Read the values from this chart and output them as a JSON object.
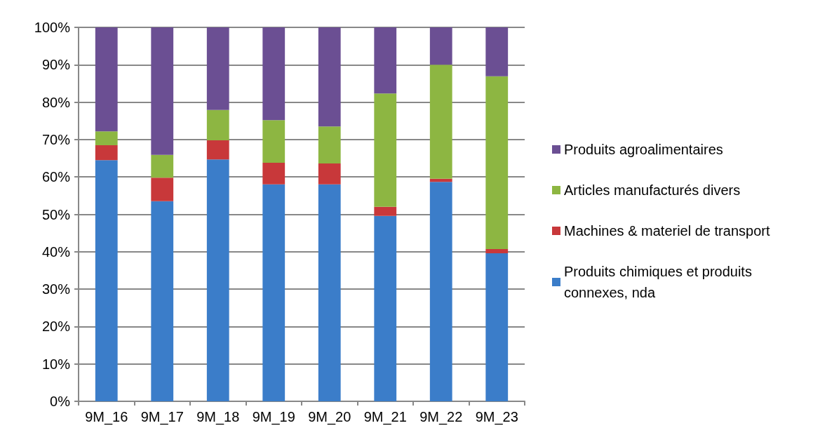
{
  "chart_data": {
    "type": "bar",
    "stacked": true,
    "grid": "y",
    "legend": "right",
    "categories": [
      "9M_16",
      "9M_17",
      "9M_18",
      "9M_19",
      "9M_20",
      "9M_21",
      "9M_22",
      "9M_23"
    ],
    "series": [
      {
        "name": "Produits chimiques et produits connexes, nda",
        "color": "#3b7dc9",
        "values": [
          64.5,
          53.5,
          64.7,
          58.0,
          58.0,
          49.6,
          58.7,
          39.6
        ]
      },
      {
        "name": "Machines & materiel de transport",
        "color": "#c8383a",
        "values": [
          4.0,
          6.3,
          5.1,
          5.8,
          5.6,
          2.4,
          0.8,
          1.1
        ]
      },
      {
        "name": "Articles manufacturés divers",
        "color": "#8db642",
        "values": [
          3.7,
          6.1,
          8.1,
          11.4,
          9.9,
          30.3,
          30.5,
          46.2
        ]
      },
      {
        "name": "Produits agroalimentaires",
        "color": "#6b4f93",
        "values": [
          27.8,
          34.1,
          22.1,
          24.8,
          26.5,
          17.7,
          10.0,
          13.1
        ]
      }
    ],
    "ylim": [
      0,
      100
    ],
    "yticks": [
      {
        "value": 0,
        "label": "0%"
      },
      {
        "value": 10,
        "label": "10%"
      },
      {
        "value": 20,
        "label": "20%"
      },
      {
        "value": 30,
        "label": "30%"
      },
      {
        "value": 40,
        "label": "40%"
      },
      {
        "value": 50,
        "label": "50%"
      },
      {
        "value": 60,
        "label": "60%"
      },
      {
        "value": 70,
        "label": "70%"
      },
      {
        "value": 80,
        "label": "80%"
      },
      {
        "value": 90,
        "label": "90%"
      },
      {
        "value": 100,
        "label": "100%"
      }
    ]
  }
}
